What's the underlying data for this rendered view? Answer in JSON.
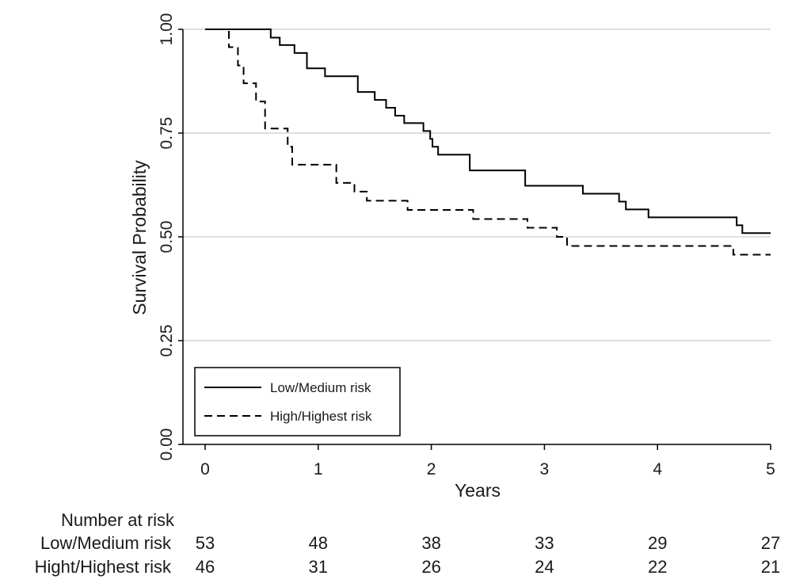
{
  "chart_data": {
    "type": "line",
    "title": "",
    "xlabel": "Years",
    "ylabel": "Survival Probability",
    "xlim": [
      0,
      5
    ],
    "ylim": [
      0,
      1
    ],
    "x_ticks": [
      "0",
      "1",
      "2",
      "3",
      "4",
      "5"
    ],
    "y_ticks": [
      "0.00",
      "0.25",
      "0.50",
      "0.75",
      "1.00"
    ],
    "grid": "horizontal",
    "legend_position": "bottom-left",
    "series": [
      {
        "name": "Low/Medium risk",
        "style": "solid",
        "color": "#000000",
        "steps": [
          [
            0,
            1.0
          ],
          [
            0.58,
            0.98
          ],
          [
            0.66,
            0.962
          ],
          [
            0.79,
            0.943
          ],
          [
            0.9,
            0.906
          ],
          [
            1.06,
            0.887
          ],
          [
            1.35,
            0.849
          ],
          [
            1.5,
            0.83
          ],
          [
            1.6,
            0.811
          ],
          [
            1.68,
            0.792
          ],
          [
            1.76,
            0.774
          ],
          [
            1.93,
            0.755
          ],
          [
            1.99,
            0.736
          ],
          [
            2.01,
            0.717
          ],
          [
            2.06,
            0.698
          ],
          [
            2.34,
            0.66
          ],
          [
            2.83,
            0.623
          ],
          [
            3.34,
            0.604
          ],
          [
            3.66,
            0.585
          ],
          [
            3.72,
            0.566
          ],
          [
            3.92,
            0.547
          ],
          [
            4.7,
            0.528
          ],
          [
            4.75,
            0.509
          ],
          [
            5.0,
            0.509
          ]
        ]
      },
      {
        "name": "High/Highest risk",
        "style": "dashed",
        "color": "#000000",
        "steps": [
          [
            0,
            1.0
          ],
          [
            0.21,
            0.957
          ],
          [
            0.29,
            0.913
          ],
          [
            0.34,
            0.87
          ],
          [
            0.45,
            0.826
          ],
          [
            0.53,
            0.761
          ],
          [
            0.73,
            0.717
          ],
          [
            0.77,
            0.674
          ],
          [
            1.16,
            0.63
          ],
          [
            1.32,
            0.609
          ],
          [
            1.43,
            0.587
          ],
          [
            1.79,
            0.565
          ],
          [
            2.37,
            0.543
          ],
          [
            2.85,
            0.522
          ],
          [
            3.11,
            0.5
          ],
          [
            3.2,
            0.478
          ],
          [
            4.67,
            0.457
          ],
          [
            5.0,
            0.457
          ]
        ]
      }
    ],
    "risk_table": {
      "title": "Number at risk",
      "timepoints": [
        0,
        1,
        2,
        3,
        4,
        5
      ],
      "rows": [
        {
          "label": "Low/Medium risk",
          "values": [
            "53",
            "48",
            "38",
            "33",
            "29",
            "27"
          ]
        },
        {
          "label": "Hight/Highest risk",
          "values": [
            "46",
            "31",
            "26",
            "24",
            "22",
            "21"
          ]
        }
      ]
    }
  }
}
